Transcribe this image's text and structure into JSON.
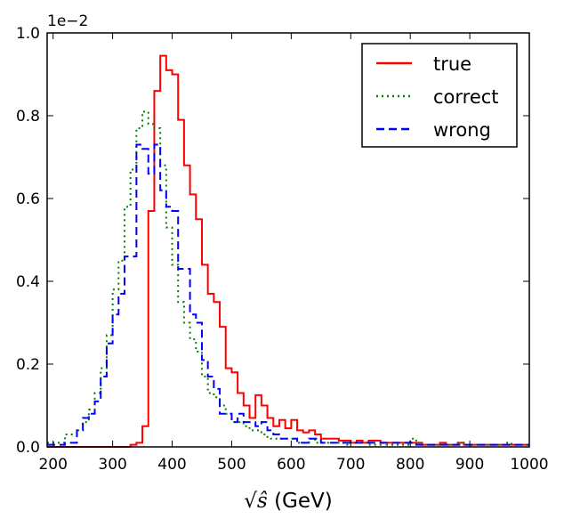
{
  "chart_data": {
    "type": "line",
    "style": "step-histogram",
    "title": "",
    "xlabel_math": "√ŝ",
    "xlabel_unit": "(GeV)",
    "ylabel": "",
    "y_multiplier": "1e−2",
    "xlim": [
      190,
      1000
    ],
    "ylim": [
      0,
      1.0
    ],
    "xticks": [
      "200",
      "300",
      "400",
      "500",
      "600",
      "700",
      "800",
      "900",
      "1000"
    ],
    "yticks": [
      "0.0",
      "0.2",
      "0.4",
      "0.6",
      "0.8",
      "1.0"
    ],
    "legend_position": "top-right",
    "bin_edges_start": 190,
    "bin_width": 10,
    "series": [
      {
        "name": "true",
        "color": "#ff0000",
        "dash": "solid",
        "values": [
          0,
          0,
          0,
          0,
          0,
          0,
          0,
          0,
          0,
          0,
          0,
          0,
          0,
          0,
          0.005,
          0.01,
          0.05,
          0.57,
          0.86,
          0.945,
          0.91,
          0.9,
          0.79,
          0.68,
          0.61,
          0.55,
          0.44,
          0.37,
          0.35,
          0.29,
          0.19,
          0.18,
          0.13,
          0.1,
          0.07,
          0.125,
          0.1,
          0.07,
          0.05,
          0.065,
          0.045,
          0.065,
          0.04,
          0.035,
          0.04,
          0.03,
          0.02,
          0.02,
          0.02,
          0.015,
          0.015,
          0.01,
          0.015,
          0.01,
          0.015,
          0.015,
          0.01,
          0.01,
          0.01,
          0.01,
          0.01,
          0.01,
          0.01,
          0.005,
          0.005,
          0.005,
          0.01,
          0.005,
          0.005,
          0.01,
          0.005,
          0.005,
          0.005,
          0.005,
          0.005,
          0.005,
          0.005,
          0.005,
          0.005,
          0.005,
          0.005
        ]
      },
      {
        "name": "correct",
        "color": "#008000",
        "dash": "dotted",
        "values": [
          0.01,
          0.01,
          0.01,
          0.03,
          0.03,
          0.04,
          0.06,
          0.09,
          0.13,
          0.19,
          0.27,
          0.38,
          0.45,
          0.58,
          0.67,
          0.77,
          0.81,
          0.78,
          0.77,
          0.68,
          0.53,
          0.44,
          0.35,
          0.3,
          0.26,
          0.23,
          0.17,
          0.13,
          0.12,
          0.1,
          0.08,
          0.06,
          0.06,
          0.05,
          0.04,
          0.04,
          0.03,
          0.02,
          0.02,
          0.02,
          0.02,
          0.02,
          0.01,
          0.01,
          0.02,
          0.01,
          0.01,
          0.01,
          0.01,
          0.01,
          0.005,
          0.01,
          0.01,
          0.01,
          0.005,
          0.005,
          0.01,
          0.005,
          0.005,
          0.005,
          0.005,
          0.02,
          0.01,
          0.005,
          0.005,
          0.005,
          0.005,
          0.005,
          0.005,
          0.01,
          0.005,
          0.005,
          0.005,
          0.005,
          0.005,
          0.005,
          0.005,
          0.01,
          0.005,
          0.005,
          0.005
        ]
      },
      {
        "name": "wrong",
        "color": "#0000ff",
        "dash": "dashed",
        "values": [
          0.005,
          0.005,
          0.005,
          0.01,
          0.01,
          0.04,
          0.07,
          0.08,
          0.11,
          0.17,
          0.25,
          0.32,
          0.37,
          0.46,
          0.46,
          0.73,
          0.72,
          0.66,
          0.73,
          0.62,
          0.58,
          0.57,
          0.43,
          0.43,
          0.32,
          0.3,
          0.21,
          0.17,
          0.14,
          0.08,
          0.08,
          0.06,
          0.08,
          0.06,
          0.06,
          0.05,
          0.06,
          0.04,
          0.03,
          0.02,
          0.02,
          0.02,
          0.01,
          0.01,
          0.02,
          0.02,
          0.01,
          0.01,
          0.01,
          0.01,
          0.01,
          0.01,
          0.01,
          0.01,
          0.01,
          0.01,
          0.01,
          0.01,
          0.01,
          0.01,
          0.01,
          0.01,
          0.005,
          0.005,
          0.005,
          0.005,
          0.005,
          0.005,
          0.005,
          0.005,
          0.005,
          0.005,
          0.005,
          0.005,
          0.005,
          0.005,
          0.005,
          0.005,
          0.005,
          0.005,
          0.005
        ]
      }
    ]
  }
}
